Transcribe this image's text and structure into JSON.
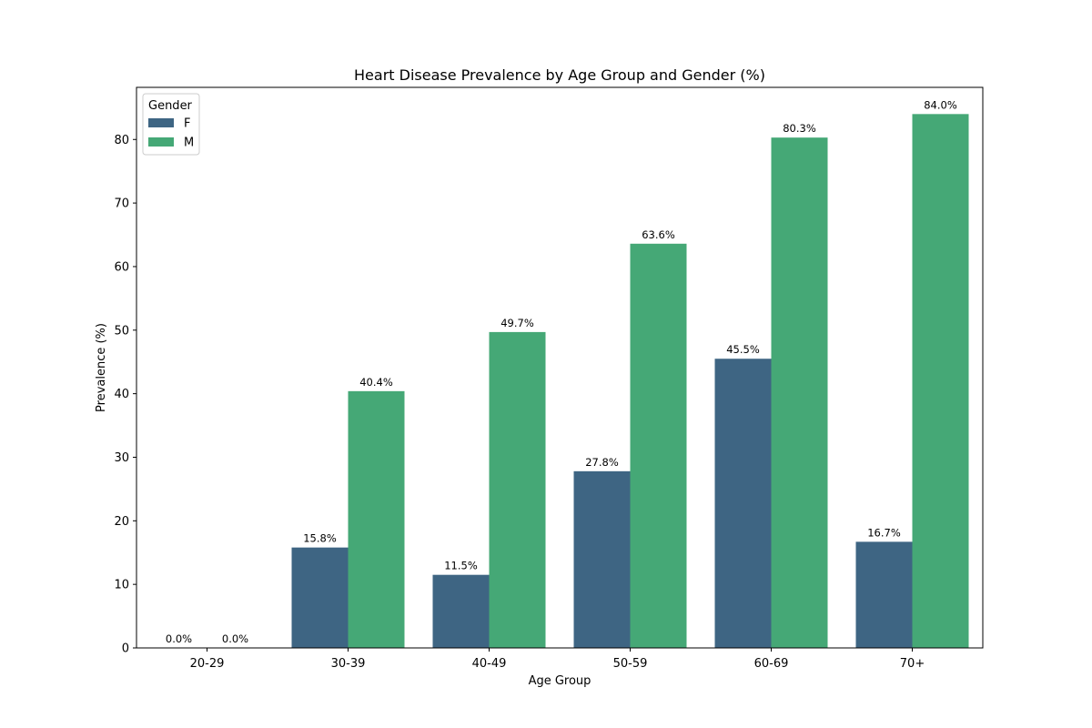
{
  "chart_data": {
    "type": "bar",
    "title": "Heart Disease Prevalence by Age Group and Gender (%)",
    "xlabel": "Age Group",
    "ylabel": "Prevalence (%)",
    "categories": [
      "20-29",
      "30-39",
      "40-49",
      "50-59",
      "60-69",
      "70+"
    ],
    "series": [
      {
        "name": "F",
        "color": "#3e6583",
        "values": [
          0.0,
          15.8,
          11.5,
          27.8,
          45.5,
          16.7
        ]
      },
      {
        "name": "M",
        "color": "#45a876",
        "values": [
          0.0,
          40.4,
          49.7,
          63.6,
          80.3,
          84.0
        ]
      }
    ],
    "data_labels": [
      [
        "0.0%",
        "15.8%",
        "11.5%",
        "27.8%",
        "45.5%",
        "16.7%"
      ],
      [
        "0.0%",
        "40.4%",
        "49.7%",
        "63.6%",
        "80.3%",
        "84.0%"
      ]
    ],
    "ylim": [
      0,
      88.2
    ],
    "yticks": [
      0,
      10,
      20,
      30,
      40,
      50,
      60,
      70,
      80
    ],
    "grid": false,
    "legend": {
      "title": "Gender",
      "placement": "top-left"
    }
  }
}
